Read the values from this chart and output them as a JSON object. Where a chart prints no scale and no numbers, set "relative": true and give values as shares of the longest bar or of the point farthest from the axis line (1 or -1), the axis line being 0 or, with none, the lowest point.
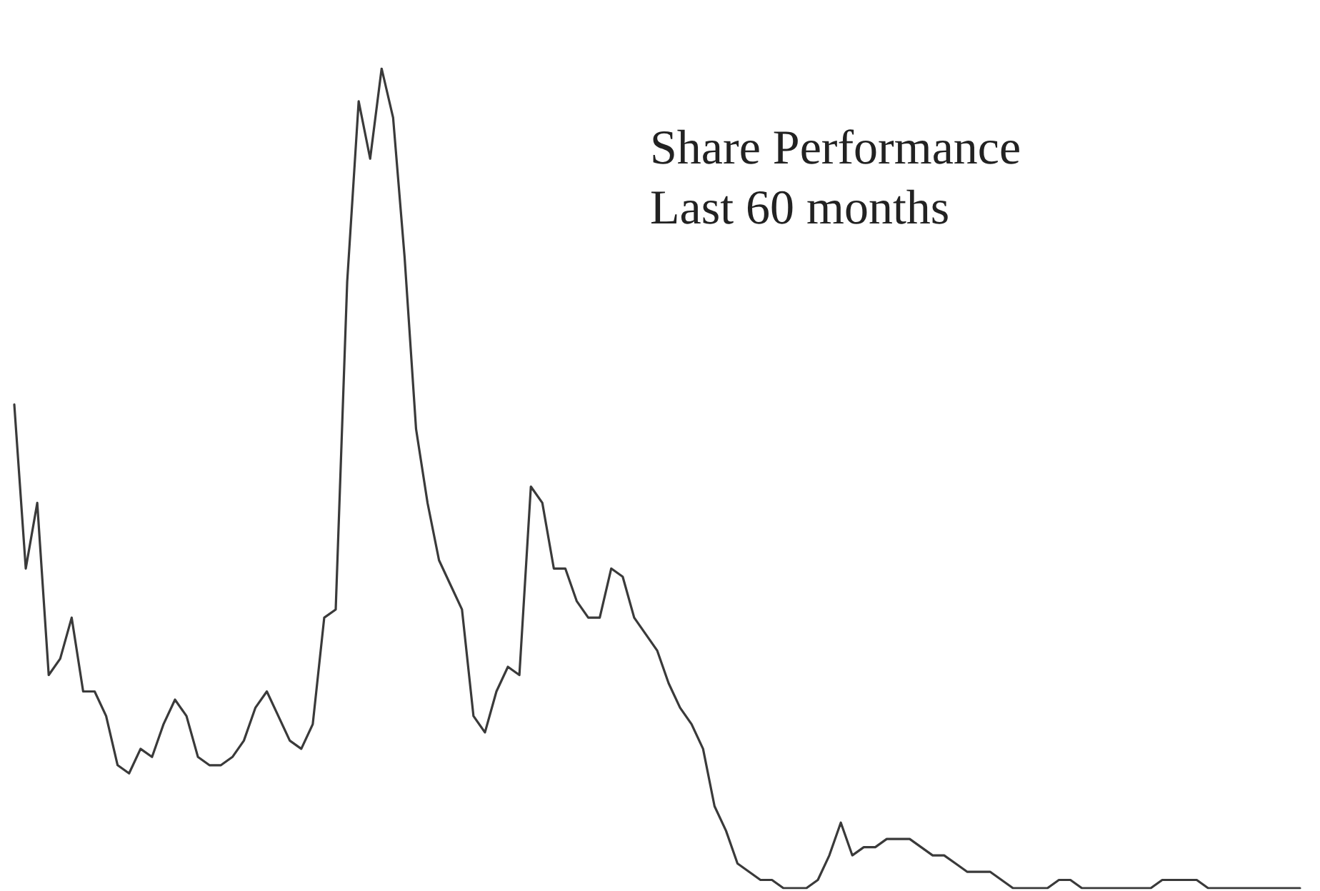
{
  "chart_data": {
    "type": "line",
    "title": "Share Performance",
    "subtitle": "Last 60 months",
    "relative": true,
    "categories": [
      null,
      null,
      null,
      null,
      null,
      null,
      null,
      null,
      null,
      null,
      null,
      null,
      null,
      null,
      null,
      null,
      null,
      null,
      null,
      null,
      null,
      null,
      null,
      null,
      null,
      null,
      null,
      null,
      null,
      null,
      null,
      null,
      null,
      null,
      null,
      null,
      null,
      null,
      null,
      null,
      null,
      null,
      null,
      null,
      null,
      null,
      null,
      null,
      null,
      null,
      null,
      null,
      null,
      null,
      null,
      null,
      null,
      null,
      null,
      null,
      null,
      null,
      null,
      null,
      null,
      null,
      null,
      null,
      null,
      null,
      null,
      null,
      null,
      null,
      null,
      null,
      null,
      null,
      null,
      null,
      null,
      null,
      null,
      null,
      null,
      null,
      null,
      null,
      null,
      null,
      null,
      null,
      null,
      null,
      null,
      null,
      null,
      null,
      null,
      null,
      null,
      null,
      null,
      null,
      null,
      null,
      null,
      null,
      null,
      null,
      null,
      null,
      null
    ],
    "series": [
      {
        "color": "#3a3a3a",
        "values": [
          0.59,
          0.39,
          0.47,
          0.26,
          0.28,
          0.33,
          0.24,
          0.24,
          0.21,
          0.15,
          0.14,
          0.17,
          0.16,
          0.2,
          0.23,
          0.21,
          0.16,
          0.15,
          0.15,
          0.16,
          0.18,
          0.22,
          0.24,
          0.21,
          0.18,
          0.17,
          0.2,
          0.33,
          0.34,
          0.74,
          0.96,
          0.89,
          1,
          0.94,
          0.77,
          0.56,
          0.47,
          0.4,
          0.37,
          0.34,
          0.21,
          0.19,
          0.24,
          0.27,
          0.26,
          0.49,
          0.47,
          0.39,
          0.39,
          0.35,
          0.33,
          0.33,
          0.39,
          0.38,
          0.33,
          0.31,
          0.29,
          0.25,
          0.22,
          0.2,
          0.17,
          0.1,
          0.07,
          0.03,
          0.02,
          0.01,
          0.01,
          0,
          0,
          0,
          0.01,
          0.04,
          0.08,
          0.04,
          0.05,
          0.05,
          0.06,
          0.06,
          0.06,
          0.05,
          0.04,
          0.04,
          0.03,
          0.02,
          0.02,
          0.02,
          0.01,
          0,
          0,
          0,
          0,
          0.01,
          0.01,
          0,
          0,
          0,
          0,
          0,
          0,
          0,
          0.01,
          0.01,
          0.01,
          0.01,
          0,
          0,
          0,
          0,
          0,
          0,
          0,
          0,
          0
        ]
      }
    ]
  }
}
